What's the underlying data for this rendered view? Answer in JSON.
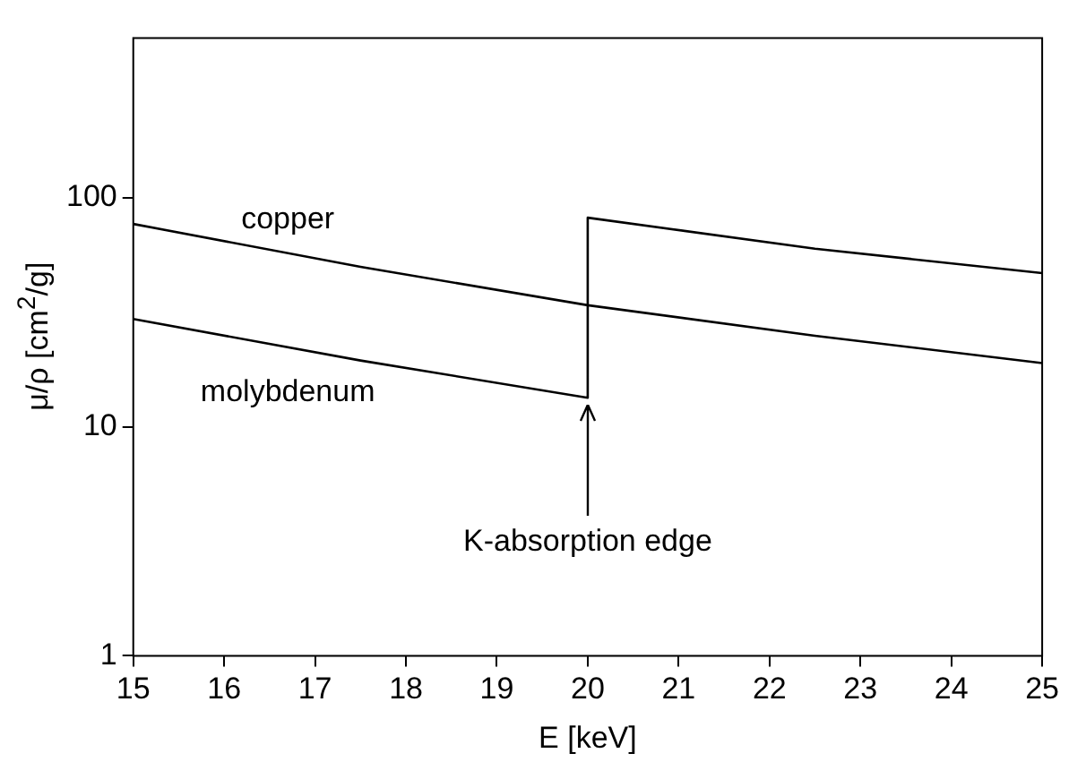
{
  "chart_data": {
    "type": "line",
    "xlabel": "E [keV]",
    "ylabel": "μ/ρ [cm$^{2}$/g]",
    "xlim": [
      15,
      25
    ],
    "xticks": [
      15,
      16,
      17,
      18,
      19,
      20,
      21,
      22,
      23,
      24,
      25
    ],
    "ylim": [
      1,
      500
    ],
    "yticks": [
      1,
      10,
      100
    ],
    "log": "y",
    "grid": false,
    "legend": false,
    "marker": "none",
    "line_style": "solid",
    "series": [
      {
        "name": "copper",
        "color": "#000000",
        "x": [
          15,
          17.5,
          20,
          22.5,
          25
        ],
        "values": [
          77,
          50,
          34,
          25,
          19
        ]
      },
      {
        "name": "molybdenum",
        "color": "#000000",
        "x": [
          15,
          17.5,
          20,
          20,
          22.5,
          25
        ],
        "values": [
          29.6,
          19.5,
          13.4,
          82,
          60,
          47
        ]
      }
    ],
    "annotations": [
      {
        "text": "K-absorption edge",
        "x": 20,
        "y": 13.4
      }
    ]
  }
}
